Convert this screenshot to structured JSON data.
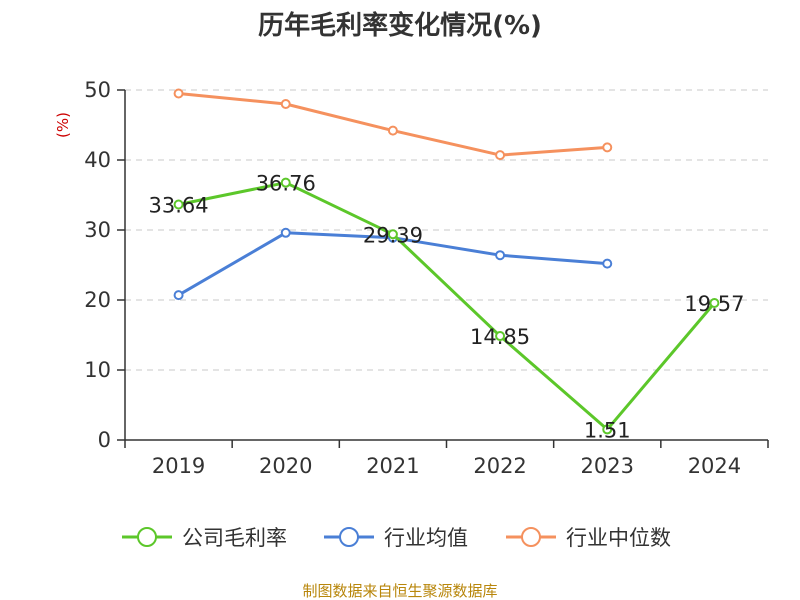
{
  "chart_data": {
    "type": "line",
    "title": "历年毛利率变化情况(%)",
    "ylabel": "(%)",
    "xlabel": "",
    "categories": [
      "2019",
      "2020",
      "2021",
      "2022",
      "2023",
      "2024"
    ],
    "ylim": [
      0,
      50
    ],
    "yticks": [
      0,
      10,
      20,
      30,
      40,
      50
    ],
    "grid": true,
    "legend_position": "bottom",
    "series": [
      {
        "name": "公司毛利率",
        "color": "#5cc72a",
        "values": [
          33.64,
          36.76,
          29.39,
          14.85,
          1.51,
          19.57
        ],
        "labels": [
          "33.64",
          "36.76",
          "29.39",
          "14.85",
          "1.51",
          "19.57"
        ]
      },
      {
        "name": "行业均值",
        "color": "#4a7fd6",
        "values": [
          20.7,
          29.6,
          28.9,
          26.4,
          25.2,
          null
        ]
      },
      {
        "name": "行业中位数",
        "color": "#f5915e",
        "values": [
          49.5,
          48.0,
          44.2,
          40.7,
          41.8,
          null
        ]
      }
    ]
  },
  "source": "制图数据来自恒生聚源数据库"
}
